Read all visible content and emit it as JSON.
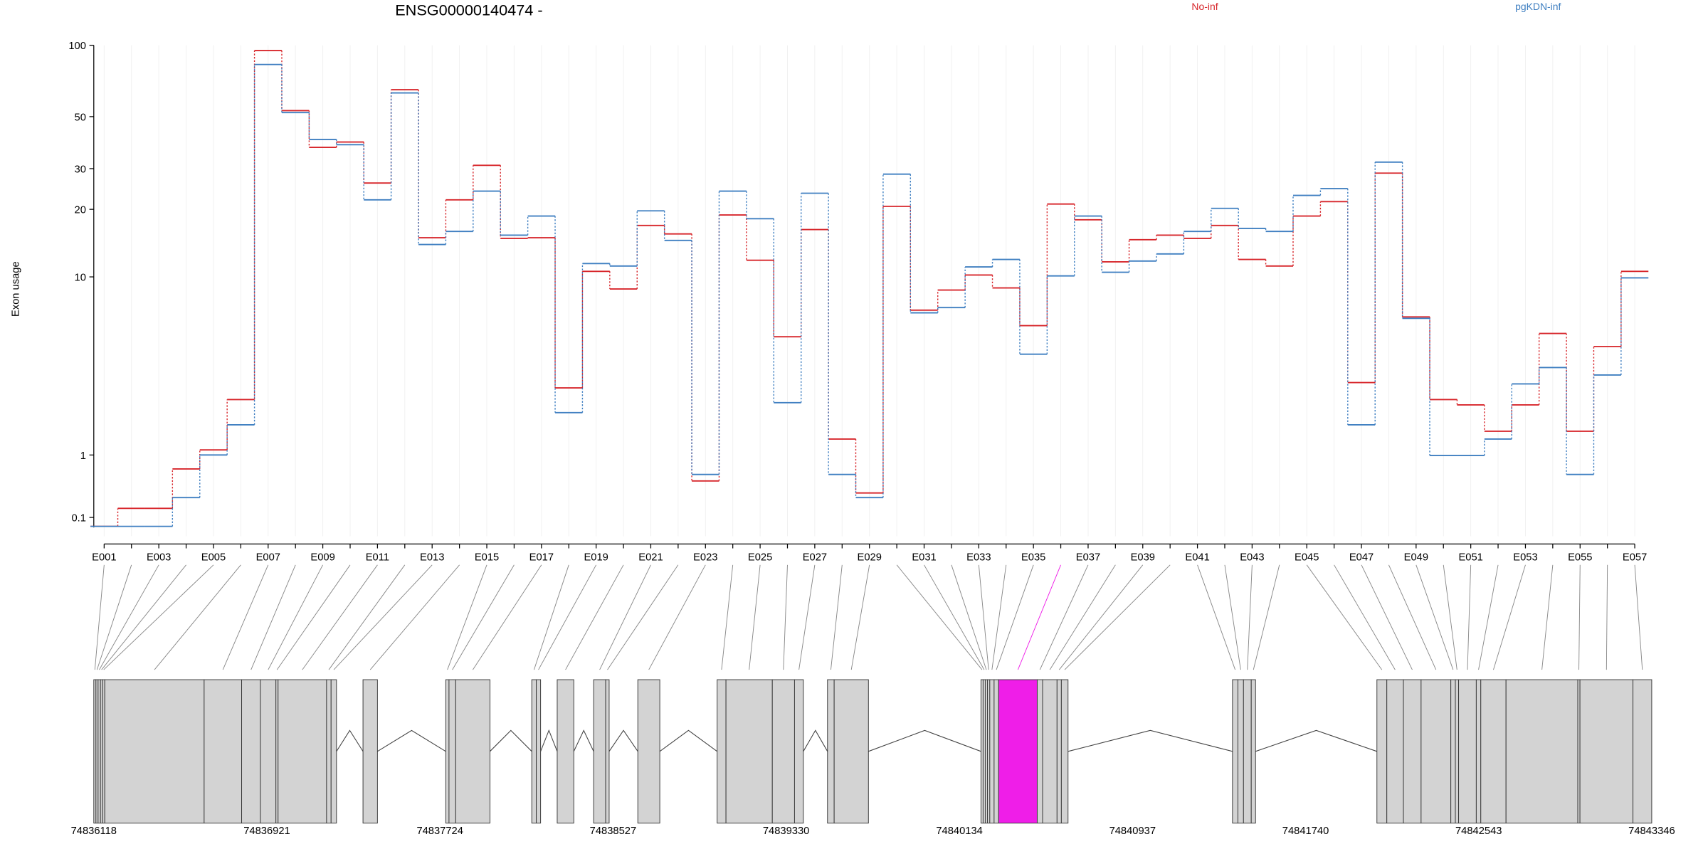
{
  "chart_data": [
    {
      "type": "step",
      "title": "ENSG00000140474 -",
      "y_label": "Exon usage",
      "yscale": "log1p",
      "ylim": [
        0,
        100
      ],
      "yticks": [
        0.1,
        1,
        10,
        20,
        30,
        50,
        100
      ],
      "xgrid": true,
      "categories": [
        "E001",
        null,
        "E003",
        null,
        "E005",
        null,
        "E007",
        null,
        "E009",
        null,
        "E011",
        null,
        "E013",
        null,
        "E015",
        null,
        "E017",
        null,
        "E019",
        null,
        "E021",
        null,
        "E023",
        null,
        "E025",
        null,
        "E027",
        null,
        "E029",
        null,
        "E031",
        null,
        "E033",
        null,
        "E035",
        null,
        "E037",
        null,
        "E039",
        null,
        "E041",
        null,
        "E043",
        null,
        "E045",
        null,
        "E047",
        null,
        "E049",
        null,
        "E051",
        null,
        "E053",
        null,
        "E055",
        null,
        "E057"
      ],
      "series": [
        {
          "name": "No-inf",
          "color": "#d7262b",
          "values": [
            0.01,
            0.2,
            0.2,
            0.75,
            1.1,
            2.4,
            95,
            53,
            37,
            39,
            26,
            65,
            15,
            22,
            31,
            14.9,
            15,
            2.8,
            10.6,
            8.8,
            17,
            15.6,
            0.56,
            18.9,
            11.9,
            5.2,
            16.3,
            1.33,
            0.39,
            20.6,
            7,
            8.7,
            10.2,
            8.9,
            5.9,
            21.1,
            18,
            11.7,
            14.7,
            15.4,
            14.9,
            17,
            12,
            11.2,
            18.7,
            21.6,
            3,
            28.7,
            6.5,
            2.4,
            2.23,
            1.51,
            2.23,
            5.4,
            1.51,
            4.65,
            10.6
          ]
        },
        {
          "name": "pgKDN-inf",
          "color": "#3f7fc1",
          "values": [
            0.01,
            0.01,
            0.01,
            0.33,
            1,
            1.67,
            83,
            52,
            40,
            38,
            22,
            63,
            14,
            16,
            24,
            15.4,
            18.7,
            2,
            11.5,
            11.2,
            19.7,
            14.6,
            0.66,
            24,
            18.2,
            2.3,
            23.5,
            0.66,
            0.33,
            28.4,
            6.8,
            7.2,
            11.1,
            12,
            4.25,
            10.1,
            18.7,
            10.5,
            11.8,
            12.7,
            16,
            20.2,
            16.5,
            16,
            23,
            24.6,
            1.67,
            32,
            6.4,
            0.99,
            0.99,
            1.33,
            2.95,
            3.62,
            0.66,
            3.3,
            9.9
          ]
        }
      ]
    },
    {
      "type": "gene",
      "xlim": [
        74836118,
        74843346
      ],
      "xticks": [
        74836118,
        74836921,
        74837724,
        74838527,
        74839330,
        74840134,
        74840937,
        74841740,
        74842543,
        74843346
      ],
      "color": "#d3d3d3",
      "exons": [
        {
          "start": 74836118,
          "end": 74836128
        },
        {
          "start": 74836128,
          "end": 74836138
        },
        {
          "start": 74836138,
          "end": 74836149
        },
        {
          "start": 74836149,
          "end": 74836159
        },
        {
          "start": 74836159,
          "end": 74836169
        },
        {
          "start": 74836169,
          "end": 74836630
        },
        {
          "start": 74836630,
          "end": 74836804
        },
        {
          "start": 74836804,
          "end": 74836891
        },
        {
          "start": 74836891,
          "end": 74836963
        },
        {
          "start": 74836963,
          "end": 74836973
        },
        {
          "start": 74836973,
          "end": 74837198
        },
        {
          "start": 74837198,
          "end": 74837219
        },
        {
          "start": 74837219,
          "end": 74837244
        },
        {
          "start": 74837367,
          "end": 74837434
        },
        {
          "start": 74837751,
          "end": 74837766
        },
        {
          "start": 74837766,
          "end": 74837797
        },
        {
          "start": 74837797,
          "end": 74837956
        },
        {
          "start": 74838150,
          "end": 74838171
        },
        {
          "start": 74838171,
          "end": 74838191
        },
        {
          "start": 74838268,
          "end": 74838345
        },
        {
          "start": 74838437,
          "end": 74838493
        },
        {
          "start": 74838493,
          "end": 74838509
        },
        {
          "start": 74838642,
          "end": 74838744
        },
        {
          "start": 74839010,
          "end": 74839051
        },
        {
          "start": 74839051,
          "end": 74839266
        },
        {
          "start": 74839266,
          "end": 74839369
        },
        {
          "start": 74839369,
          "end": 74839410
        },
        {
          "start": 74839522,
          "end": 74839553
        },
        {
          "start": 74839553,
          "end": 74839712
        },
        {
          "start": 74840234,
          "end": 74840244
        },
        {
          "start": 74840244,
          "end": 74840254
        },
        {
          "start": 74840254,
          "end": 74840264
        },
        {
          "start": 74840264,
          "end": 74840275
        },
        {
          "start": 74840275,
          "end": 74840295
        },
        {
          "start": 74840295,
          "end": 74840316
        },
        {
          "start": 74840316,
          "end": 74840495,
          "color": "#ef1ee8"
        },
        {
          "start": 74840495,
          "end": 74840520
        },
        {
          "start": 74840520,
          "end": 74840587
        },
        {
          "start": 74840587,
          "end": 74840607
        },
        {
          "start": 74840607,
          "end": 74840638
        },
        {
          "start": 74841401,
          "end": 74841426
        },
        {
          "start": 74841426,
          "end": 74841452
        },
        {
          "start": 74841452,
          "end": 74841488
        },
        {
          "start": 74841488,
          "end": 74841508
        },
        {
          "start": 74842071,
          "end": 74842117
        },
        {
          "start": 74842117,
          "end": 74842194
        },
        {
          "start": 74842194,
          "end": 74842276
        },
        {
          "start": 74842276,
          "end": 74842414
        },
        {
          "start": 74842414,
          "end": 74842435
        },
        {
          "start": 74842435,
          "end": 74842450
        },
        {
          "start": 74842450,
          "end": 74842532
        },
        {
          "start": 74842532,
          "end": 74842553
        },
        {
          "start": 74842553,
          "end": 74842670
        },
        {
          "start": 74842670,
          "end": 74843003
        },
        {
          "start": 74843003,
          "end": 74843013
        },
        {
          "start": 74843013,
          "end": 74843259
        },
        {
          "start": 74843259,
          "end": 74843346
        }
      ]
    }
  ]
}
